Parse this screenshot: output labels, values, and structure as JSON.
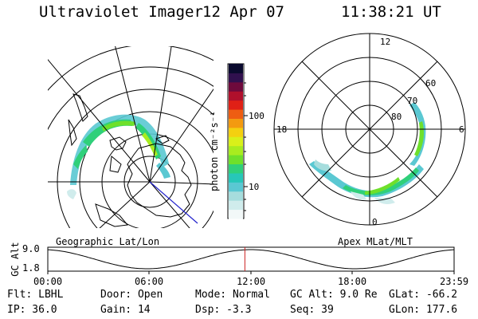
{
  "header": {
    "title": "Ultraviolet Imager",
    "date": "12 Apr 07",
    "time": "11:38:21 UT"
  },
  "colorbar": {
    "label": "photon cm⁻²s⁻¹",
    "ticks": [
      "100",
      "10"
    ],
    "colors": [
      "#f2f8f8",
      "#d0ecec",
      "#a6dddd",
      "#5ac8d2",
      "#27c7b8",
      "#2fd07a",
      "#6ee02b",
      "#a8ec1f",
      "#d9f01a",
      "#f4d010",
      "#f39a10",
      "#ee5d12",
      "#e02016",
      "#b0102c",
      "#6e0a3c",
      "#30104e",
      "#0a0a2e"
    ]
  },
  "left_panel": {
    "label": "Geographic Lat/Lon"
  },
  "right_panel": {
    "label": "Apex MLat/MLT",
    "mlt_labels": {
      "top": "12",
      "left": "18",
      "right": "6",
      "bottom": "0"
    },
    "lat_labels": [
      "60",
      "70",
      "80"
    ]
  },
  "gc_alt": {
    "label": "GC Alt",
    "ymax": "9.0",
    "ymin": "1.8",
    "time_ticks": [
      "00:00",
      "06:00",
      "12:00",
      "18:00",
      "23:59"
    ],
    "current_time_marker_hours": 11.64
  },
  "info": {
    "flt": "Flt: LBHL",
    "ip": "IP: 36.0",
    "door": "Door: Open",
    "gain": "Gain: 14",
    "mode": "Mode: Normal",
    "dsp": "Dsp:   -3.3",
    "gcalt": "GC Alt: 9.0 Re",
    "seq": "Seq: 39",
    "glat": "GLat: -66.2",
    "glon": "GLon: 177.6"
  }
}
